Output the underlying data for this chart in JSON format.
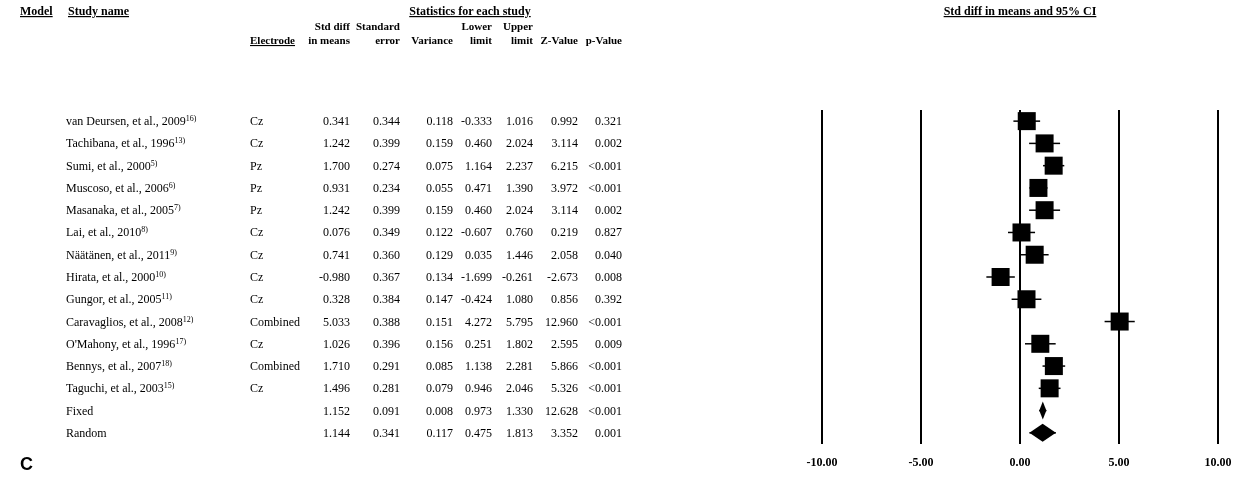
{
  "chart_data": [
    {
      "type": "heatmap",
      "title": "Statistics for each study",
      "ylabel": "Study name",
      "annotations": [
        "Model",
        "C"
      ],
      "categories": [
        "Electrode",
        "Std diff in means",
        "Standard error",
        "Variance",
        "Lower limit",
        "Upper limit",
        "Z-Value",
        "p-Value"
      ],
      "y_categories": [
        "van Deursen, et al., 2009$^{16)}$",
        "Tachibana, et al., 1996$^{13)}$",
        "Sumi, et al., 2000$^{5)}$",
        "Muscoso, et al., 2006$^{6)}$",
        "Masanaka, et al., 2005$^{7)}$",
        "Lai, et al., 2010$^{8)}$",
        "Näätänen, et al., 2011$^{9)}$",
        "Hirata, et al., 2000$^{10)}$",
        "Gungor, et al., 2005$^{11)}$",
        "Caravaglios, et al., 2008$^{12)}$",
        "O'Mahony, et al., 1996$^{17)}$",
        "Bennys, et al., 2007$^{18)}$",
        "Taguchi, et al., 2003$^{15)}$",
        "Fixed",
        "Random"
      ],
      "cells": [
        [
          null,
          0.341,
          0.344,
          0.118,
          -0.333,
          1.016,
          0.992,
          0.321
        ],
        [
          null,
          1.242,
          0.399,
          0.159,
          0.46,
          2.024,
          3.114,
          0.002
        ],
        [
          null,
          1.7,
          0.274,
          0.075,
          1.164,
          2.237,
          6.215,
          null
        ],
        [
          null,
          0.931,
          0.234,
          0.055,
          0.471,
          1.39,
          3.972,
          null
        ],
        [
          null,
          1.242,
          0.399,
          0.159,
          0.46,
          2.024,
          3.114,
          0.002
        ],
        [
          null,
          0.076,
          0.349,
          0.122,
          -0.607,
          0.76,
          0.219,
          0.827
        ],
        [
          null,
          0.741,
          0.36,
          0.129,
          0.035,
          1.446,
          2.058,
          0.04
        ],
        [
          null,
          -0.98,
          0.367,
          0.134,
          -1.699,
          -0.261,
          -2.673,
          0.008
        ],
        [
          null,
          0.328,
          0.384,
          0.147,
          -0.424,
          1.08,
          0.856,
          0.392
        ],
        [
          null,
          5.033,
          0.388,
          0.151,
          4.272,
          5.795,
          12.96,
          null
        ],
        [
          null,
          1.026,
          0.396,
          0.156,
          0.251,
          1.802,
          2.595,
          0.009
        ],
        [
          null,
          1.71,
          0.291,
          0.085,
          1.138,
          2.281,
          5.866,
          null
        ],
        [
          null,
          1.496,
          0.281,
          0.079,
          0.946,
          2.046,
          5.326,
          null
        ],
        [
          null,
          1.152,
          0.091,
          0.008,
          0.973,
          1.33,
          12.628,
          null
        ],
        [
          null,
          1.144,
          0.341,
          0.117,
          0.475,
          1.813,
          3.352,
          0.001
        ]
      ],
      "cell_labels": [
        [
          "Cz",
          "0.341",
          "0.344",
          "0.118",
          "-0.333",
          "1.016",
          "0.992",
          "0.321"
        ],
        [
          "Cz",
          "1.242",
          "0.399",
          "0.159",
          "0.460",
          "2.024",
          "3.114",
          "0.002"
        ],
        [
          "Pz",
          "1.700",
          "0.274",
          "0.075",
          "1.164",
          "2.237",
          "6.215",
          "<0.001"
        ],
        [
          "Pz",
          "0.931",
          "0.234",
          "0.055",
          "0.471",
          "1.390",
          "3.972",
          "<0.001"
        ],
        [
          "Pz",
          "1.242",
          "0.399",
          "0.159",
          "0.460",
          "2.024",
          "3.114",
          "0.002"
        ],
        [
          "Cz",
          "0.076",
          "0.349",
          "0.122",
          "-0.607",
          "0.760",
          "0.219",
          "0.827"
        ],
        [
          "Cz",
          "0.741",
          "0.360",
          "0.129",
          "0.035",
          "1.446",
          "2.058",
          "0.040"
        ],
        [
          "Cz",
          "-0.980",
          "0.367",
          "0.134",
          "-1.699",
          "-0.261",
          "-2.673",
          "0.008"
        ],
        [
          "Cz",
          "0.328",
          "0.384",
          "0.147",
          "-0.424",
          "1.080",
          "0.856",
          "0.392"
        ],
        [
          "Combined",
          "5.033",
          "0.388",
          "0.151",
          "4.272",
          "5.795",
          "12.960",
          "<0.001"
        ],
        [
          "Cz",
          "1.026",
          "0.396",
          "0.156",
          "0.251",
          "1.802",
          "2.595",
          "0.009"
        ],
        [
          "Combined",
          "1.710",
          "0.291",
          "0.085",
          "1.138",
          "2.281",
          "5.866",
          "<0.001"
        ],
        [
          "Cz",
          "1.496",
          "0.281",
          "0.079",
          "0.946",
          "2.046",
          "5.326",
          "<0.001"
        ],
        [
          null,
          "1.152",
          "0.091",
          "0.008",
          "0.973",
          "1.330",
          "12.628",
          "<0.001"
        ],
        [
          null,
          "1.144",
          "0.341",
          "0.117",
          "0.475",
          "1.813",
          "3.352",
          "0.001"
        ]
      ]
    },
    {
      "type": "scatter",
      "orientation": "horizontal",
      "title": "Std diff in means and 95% CI",
      "grid": "x",
      "tick_labels": "x",
      "categories": [
        null,
        null,
        null,
        null,
        null,
        null,
        null,
        null,
        null,
        null,
        null,
        null,
        null,
        null,
        null
      ],
      "xlim": [
        -10,
        10
      ],
      "xticks": [
        {
          "value": -10,
          "label": "-10.00"
        },
        {
          "value": -5,
          "label": "-5.00"
        },
        {
          "value": 0,
          "label": "0.00"
        },
        {
          "value": 5,
          "label": "5.00"
        },
        {
          "value": 10,
          "label": "10.00"
        }
      ],
      "series": [
        {
          "color": "#000000",
          "marker": "square",
          "values": [
            0.341,
            1.242,
            1.7,
            0.931,
            1.242,
            0.076,
            0.741,
            -0.98,
            0.328,
            5.033,
            1.026,
            1.71,
            1.496,
            null,
            null
          ],
          "errors": [
            [
              -0.333,
              1.016
            ],
            [
              0.46,
              2.024
            ],
            [
              1.164,
              2.237
            ],
            [
              0.471,
              1.39
            ],
            [
              0.46,
              2.024
            ],
            [
              -0.607,
              0.76
            ],
            [
              0.035,
              1.446
            ],
            [
              -1.699,
              -0.261
            ],
            [
              -0.424,
              1.08
            ],
            [
              4.272,
              5.795
            ],
            [
              0.251,
              1.802
            ],
            [
              1.138,
              2.281
            ],
            [
              0.946,
              2.046
            ],
            null,
            null
          ]
        },
        {
          "color": "#000000",
          "marker": "diamond",
          "values": [
            null,
            null,
            null,
            null,
            null,
            null,
            null,
            null,
            null,
            null,
            null,
            null,
            null,
            1.152,
            1.144
          ],
          "errors": [
            null,
            null,
            null,
            null,
            null,
            null,
            null,
            null,
            null,
            null,
            null,
            null,
            null,
            [
              0.973,
              1.33
            ],
            [
              0.475,
              1.813
            ]
          ]
        }
      ]
    }
  ]
}
